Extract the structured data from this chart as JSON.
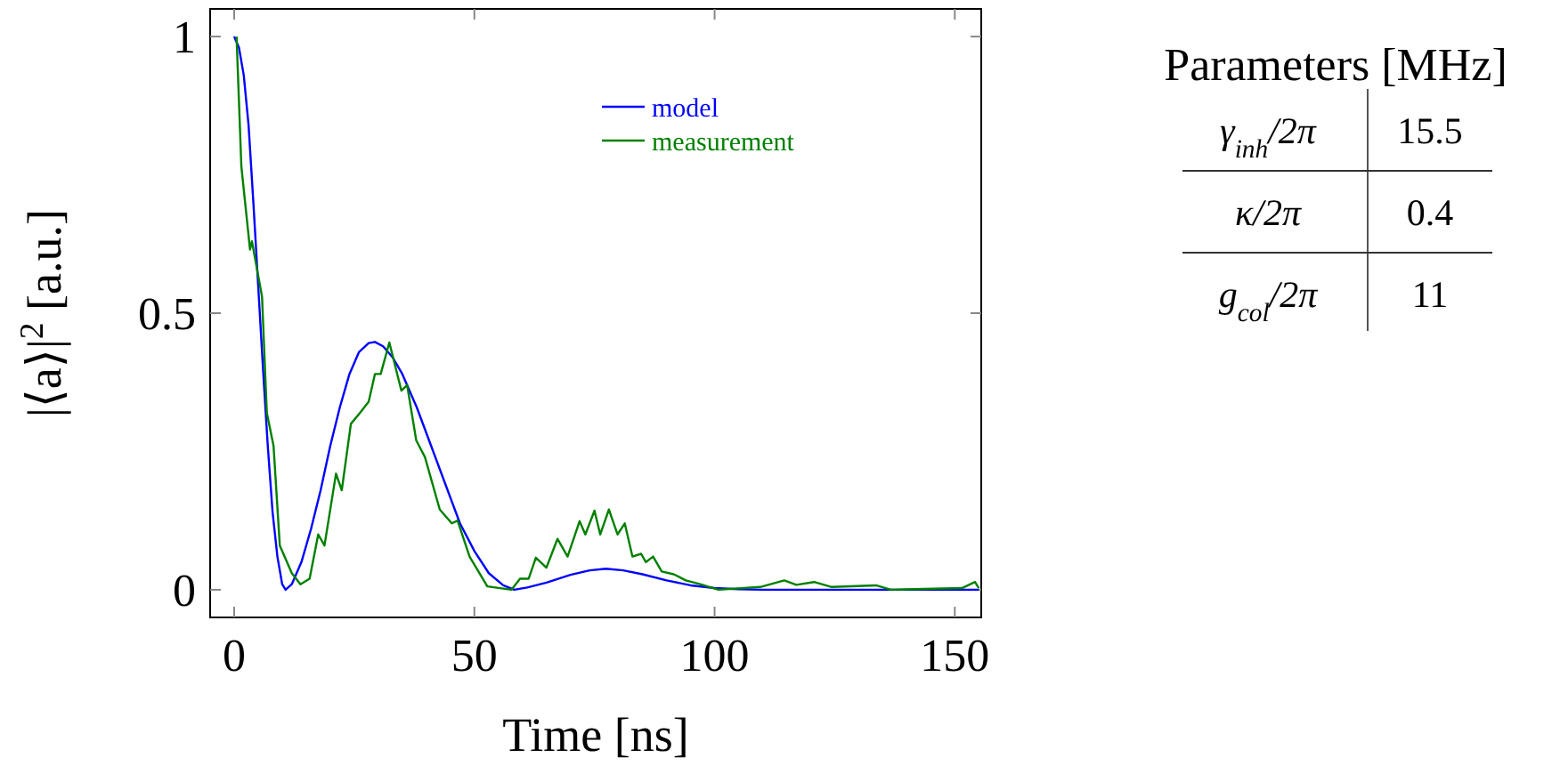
{
  "chart_data": [
    {
      "type": "line",
      "xlabel": "Time [ns]",
      "ylabel": "|⟨a⟩|$^{2}$ [a.u.]",
      "xlim": [
        -5,
        155.5
      ],
      "ylim": [
        -0.05,
        1.05
      ],
      "xticks": [
        0,
        50,
        100,
        150
      ],
      "yticks": [
        0,
        0.5,
        1
      ],
      "grid": false,
      "legend": "top right",
      "marker": "none",
      "line_style": "solid",
      "series": [
        {
          "name": "model",
          "color": "#0000ff",
          "x": [
            0,
            1,
            2,
            3,
            4,
            5,
            6,
            7,
            8,
            9,
            10,
            10.7,
            12,
            14,
            16,
            18,
            20,
            22,
            24,
            26,
            28,
            29.3,
            31,
            33,
            35,
            38,
            41,
            44,
            47,
            50,
            53,
            56,
            58.3,
            61,
            65,
            70,
            74,
            77.4,
            81,
            85,
            90,
            95,
            100,
            105,
            110,
            155
          ],
          "values": [
            1,
            0.98,
            0.93,
            0.84,
            0.7,
            0.55,
            0.4,
            0.26,
            0.14,
            0.06,
            0.01,
            0,
            0.01,
            0.05,
            0.11,
            0.18,
            0.26,
            0.33,
            0.39,
            0.43,
            0.446,
            0.448,
            0.44,
            0.42,
            0.39,
            0.33,
            0.26,
            0.19,
            0.12,
            0.07,
            0.03,
            0.008,
            0,
            0.004,
            0.013,
            0.027,
            0.035,
            0.038,
            0.035,
            0.028,
            0.017,
            0.008,
            0.003,
            0.001,
            0,
            0
          ]
        },
        {
          "name": "measurement",
          "color": "#008000",
          "x": [
            0.5,
            1.5,
            3.3,
            3.7,
            5.8,
            6.8,
            8.2,
            9.5,
            12,
            13.8,
            15.7,
            17.5,
            18.8,
            21.2,
            22.4,
            24.3,
            26.2,
            28,
            29.3,
            30.5,
            32.3,
            34.8,
            36,
            37.9,
            39.7,
            42.8,
            45.3,
            46.5,
            49,
            52.7,
            57.7,
            59.5,
            61.3,
            62.8,
            65,
            67.3,
            69.4,
            71.9,
            73.1,
            75,
            76.2,
            78,
            79.8,
            81.3,
            82.9,
            84.7,
            85.7,
            87.2,
            89,
            91.5,
            94,
            97,
            100.8,
            109.5,
            114.5,
            117,
            120.7,
            124.4,
            133.6,
            136.7,
            151.5,
            154.2,
            155
          ],
          "values": [
            1,
            0.765,
            0.615,
            0.63,
            0.53,
            0.32,
            0.26,
            0.08,
            0.03,
            0.01,
            0.02,
            0.1,
            0.08,
            0.21,
            0.18,
            0.3,
            0.32,
            0.34,
            0.39,
            0.39,
            0.447,
            0.36,
            0.37,
            0.27,
            0.24,
            0.145,
            0.12,
            0.125,
            0.06,
            0.006,
            0,
            0.02,
            0.02,
            0.058,
            0.04,
            0.092,
            0.06,
            0.124,
            0.1,
            0.143,
            0.1,
            0.145,
            0.1,
            0.12,
            0.06,
            0.065,
            0.05,
            0.06,
            0.033,
            0.028,
            0.017,
            0.01,
            0,
            0.005,
            0.017,
            0.009,
            0.014,
            0.005,
            0.008,
            0,
            0.003,
            0.014,
            0.003
          ]
        }
      ]
    },
    {
      "type": "other",
      "title": "Parameters [MHz]",
      "categories": [
        "γ$_{inh}$/2π",
        "κ/2π",
        "g$_{col}$/2π"
      ],
      "values": [
        15.5,
        0.4,
        11
      ],
      "data_labels": true
    }
  ]
}
